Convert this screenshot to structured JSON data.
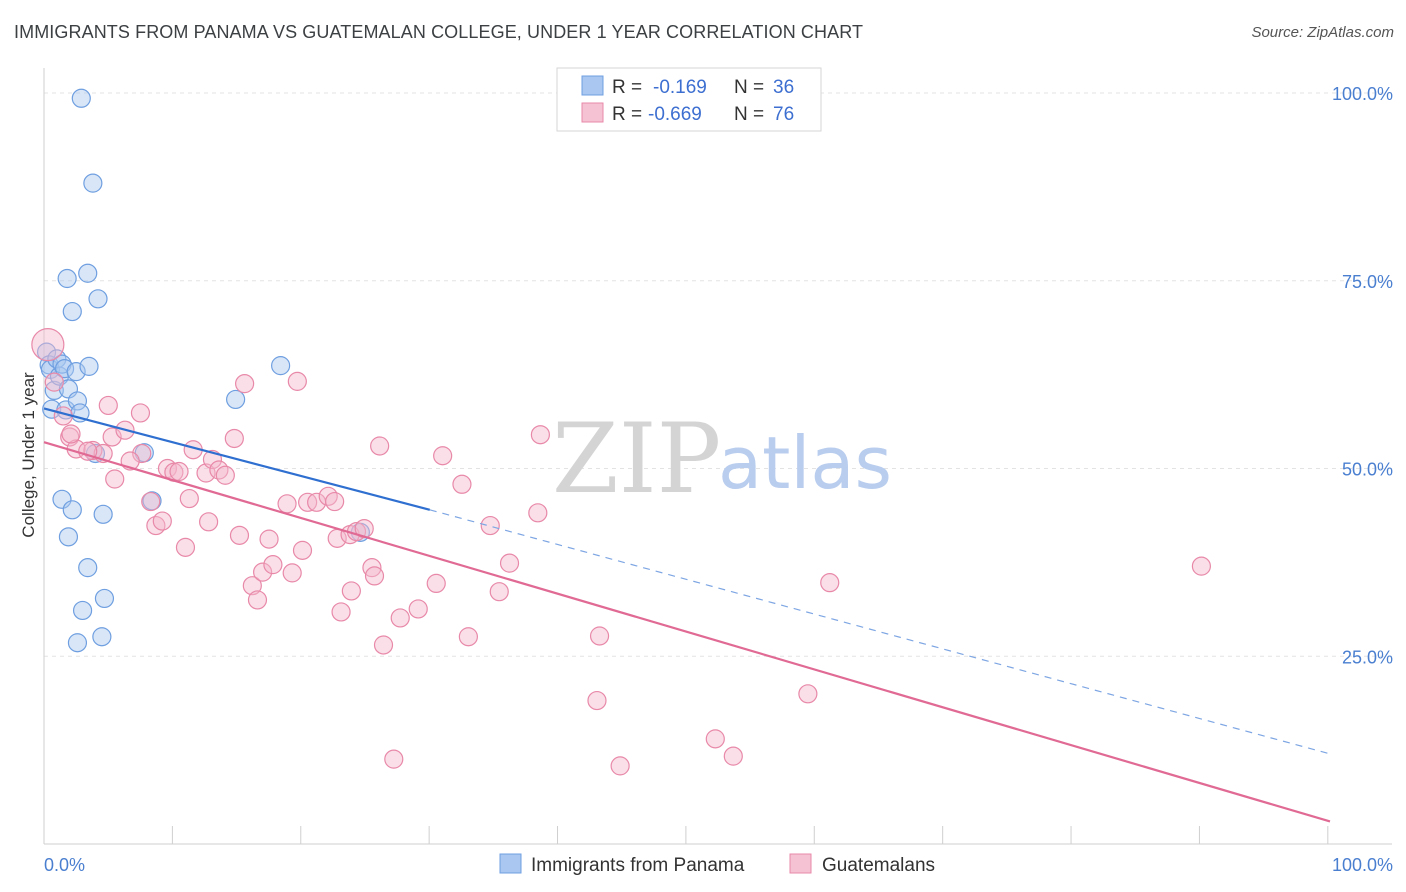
{
  "title": "IMMIGRANTS FROM PANAMA VS GUATEMALAN COLLEGE, UNDER 1 YEAR CORRELATION CHART",
  "source": "Source: ZipAtlas.com",
  "watermark": {
    "zip": "ZIP",
    "atlas": "atlas"
  },
  "chart_data": {
    "type": "scatter",
    "title": "IMMIGRANTS FROM PANAMA VS GUATEMALAN COLLEGE, UNDER 1 YEAR CORRELATION CHART",
    "xlabel": "",
    "ylabel": "College, Under 1 year",
    "xlim": [
      0,
      100
    ],
    "ylim": [
      0,
      102
    ],
    "x_tick_labels": [
      "0.0%",
      "100.0%"
    ],
    "y_ticks": [
      25,
      50,
      75,
      100
    ],
    "y_tick_labels": [
      "25.0%",
      "50.0%",
      "75.0%",
      "100.0%"
    ],
    "grid": true,
    "legend": {
      "placement": "top-center",
      "entries": [
        {
          "r_label": "R =",
          "r": "-0.169",
          "n_label": "N =",
          "n": "36"
        },
        {
          "r_label": "R =",
          "r": "-0.669",
          "n_label": "N =",
          "n": "76"
        }
      ]
    },
    "series": [
      {
        "name": "Immigrants from Panama",
        "color": "#6f9fe0",
        "fill": "#a9c7f0",
        "trend": {
          "x0": 0,
          "y0": 58,
          "x1": 30,
          "y1": 44.5,
          "dash_to_x": 100,
          "dash_to_y": 12
        },
        "points": [
          [
            0.2,
            65.5
          ],
          [
            0.4,
            63.8
          ],
          [
            0.5,
            63.2
          ],
          [
            0.8,
            60.4
          ],
          [
            0.6,
            57.9
          ],
          [
            1.0,
            64.6
          ],
          [
            1.2,
            62.3
          ],
          [
            1.4,
            63.9
          ],
          [
            1.6,
            63.3
          ],
          [
            1.9,
            60.6
          ],
          [
            1.7,
            57.8
          ],
          [
            2.5,
            62.9
          ],
          [
            2.6,
            59.0
          ],
          [
            2.8,
            57.4
          ],
          [
            1.4,
            45.9
          ],
          [
            2.2,
            44.5
          ],
          [
            1.9,
            40.9
          ],
          [
            3.4,
            36.8
          ],
          [
            3.0,
            31.1
          ],
          [
            2.6,
            26.8
          ],
          [
            4.6,
            43.9
          ],
          [
            4.7,
            32.7
          ],
          [
            4.5,
            27.6
          ],
          [
            3.8,
            88.0
          ],
          [
            2.9,
            99.3
          ],
          [
            1.8,
            75.3
          ],
          [
            3.4,
            76.0
          ],
          [
            2.2,
            70.9
          ],
          [
            4.2,
            72.6
          ],
          [
            3.5,
            63.6
          ],
          [
            7.8,
            52.1
          ],
          [
            8.4,
            45.7
          ],
          [
            14.9,
            59.2
          ],
          [
            18.4,
            63.7
          ],
          [
            24.6,
            41.5
          ],
          [
            4.0,
            52.0
          ]
        ]
      },
      {
        "name": "Guatemalans",
        "color": "#e889a8",
        "fill": "#f5b8cb",
        "trend": {
          "x0": 0,
          "y0": 53.5,
          "x1": 100,
          "y1": 3
        },
        "points": [
          [
            0.3,
            66.5
          ],
          [
            0.8,
            61.5
          ],
          [
            1.5,
            57.0
          ],
          [
            2.0,
            54.2
          ],
          [
            2.5,
            52.6
          ],
          [
            3.8,
            52.4
          ],
          [
            5.0,
            58.4
          ],
          [
            5.3,
            54.2
          ],
          [
            4.6,
            52.0
          ],
          [
            5.5,
            48.6
          ],
          [
            6.3,
            55.1
          ],
          [
            7.5,
            57.4
          ],
          [
            7.6,
            52.0
          ],
          [
            8.3,
            45.6
          ],
          [
            8.7,
            42.4
          ],
          [
            9.2,
            43.0
          ],
          [
            9.6,
            50.0
          ],
          [
            10.1,
            49.5
          ],
          [
            10.5,
            49.6
          ],
          [
            11.0,
            39.5
          ],
          [
            11.3,
            46.0
          ],
          [
            11.6,
            52.5
          ],
          [
            12.6,
            49.4
          ],
          [
            12.8,
            42.9
          ],
          [
            13.1,
            51.2
          ],
          [
            13.6,
            49.8
          ],
          [
            14.1,
            49.1
          ],
          [
            14.8,
            54.0
          ],
          [
            15.2,
            41.1
          ],
          [
            15.6,
            61.3
          ],
          [
            16.2,
            34.4
          ],
          [
            16.6,
            32.5
          ],
          [
            17.0,
            36.2
          ],
          [
            17.5,
            40.6
          ],
          [
            17.8,
            37.2
          ],
          [
            18.9,
            45.3
          ],
          [
            19.3,
            36.1
          ],
          [
            19.7,
            61.6
          ],
          [
            20.1,
            39.1
          ],
          [
            20.5,
            45.5
          ],
          [
            21.2,
            45.5
          ],
          [
            22.1,
            46.3
          ],
          [
            22.6,
            45.6
          ],
          [
            22.8,
            40.7
          ],
          [
            23.1,
            30.9
          ],
          [
            23.8,
            41.2
          ],
          [
            23.9,
            33.7
          ],
          [
            24.3,
            41.6
          ],
          [
            24.9,
            42.0
          ],
          [
            25.5,
            36.8
          ],
          [
            25.7,
            35.7
          ],
          [
            26.1,
            53.0
          ],
          [
            26.4,
            26.5
          ],
          [
            27.2,
            11.3
          ],
          [
            27.7,
            30.1
          ],
          [
            29.1,
            31.3
          ],
          [
            30.5,
            34.7
          ],
          [
            31.0,
            51.7
          ],
          [
            32.5,
            47.9
          ],
          [
            33.0,
            27.6
          ],
          [
            34.7,
            42.4
          ],
          [
            35.4,
            33.6
          ],
          [
            36.2,
            37.4
          ],
          [
            38.4,
            44.1
          ],
          [
            38.6,
            54.5
          ],
          [
            43.0,
            19.1
          ],
          [
            43.2,
            27.7
          ],
          [
            44.8,
            10.4
          ],
          [
            52.2,
            14.0
          ],
          [
            53.6,
            11.7
          ],
          [
            59.4,
            20.0
          ],
          [
            61.1,
            34.8
          ],
          [
            90.0,
            37.0
          ],
          [
            6.7,
            51.0
          ],
          [
            3.4,
            52.3
          ],
          [
            2.1,
            54.6
          ]
        ]
      }
    ]
  },
  "bottom_legend": [
    {
      "label": "Immigrants from Panama"
    },
    {
      "label": "Guatemalans"
    }
  ]
}
